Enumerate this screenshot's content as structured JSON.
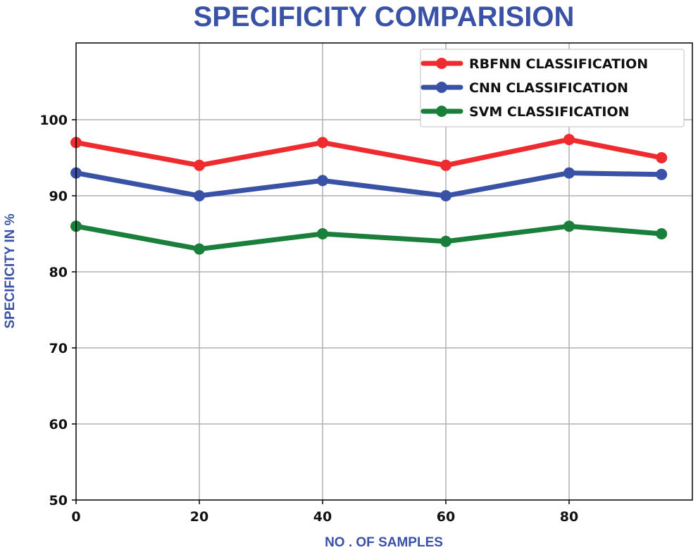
{
  "chart_data": {
    "type": "line",
    "title": "SPECIFICITY COMPARISION",
    "xlabel": "NO . OF SAMPLES",
    "ylabel": "SPECIFICITY IN %",
    "x": [
      0,
      20,
      40,
      60,
      80,
      95
    ],
    "xticks": [
      "0",
      "20",
      "40",
      "60",
      "80"
    ],
    "yticks": [
      "50",
      "60",
      "70",
      "80",
      "90",
      "100"
    ],
    "xlim": [
      0,
      99
    ],
    "ylim": [
      50,
      110
    ],
    "grid": true,
    "legend_position": "top-right",
    "series": [
      {
        "name": "RBFNN CLASSIFICATION",
        "color": "#ee2b2f",
        "values": [
          97,
          94,
          97,
          94,
          97.4,
          95
        ]
      },
      {
        "name": "CNN CLASSIFICATION",
        "color": "#3a52a6",
        "values": [
          93,
          90,
          92,
          90,
          93,
          92.8
        ]
      },
      {
        "name": "SVM CLASSIFICATION",
        "color": "#1a7f3a",
        "values": [
          86,
          83,
          85,
          84,
          86,
          85
        ]
      }
    ],
    "title_color": "#3a52a6",
    "axis_label_color": "#3a52a6"
  }
}
